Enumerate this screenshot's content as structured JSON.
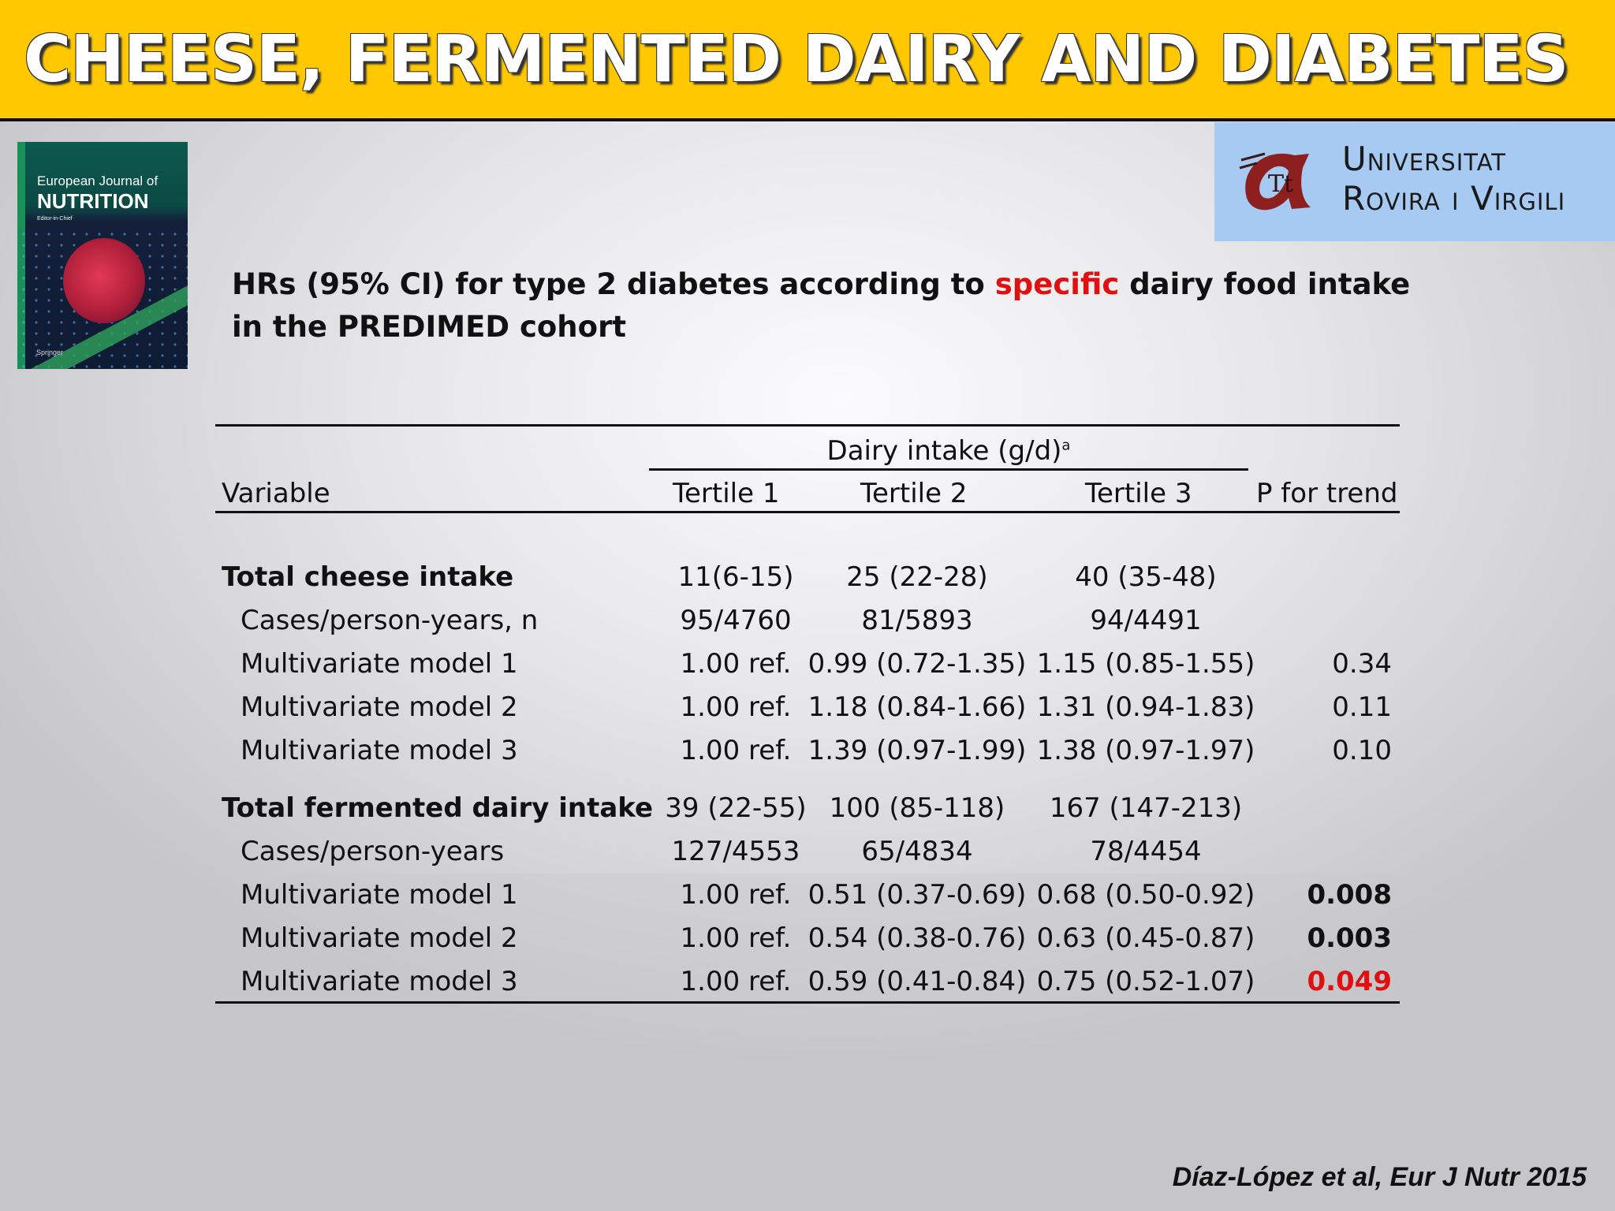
{
  "slide": {
    "title": "CHEESE, FERMENTED DAIRY AND DIABETES",
    "subtitle_pre": "HRs (95% CI) for type 2 diabetes according to ",
    "subtitle_highlight": "specific",
    "subtitle_post": " dairy food intake in the PREDIMED cohort",
    "citation": "Díaz-López et al, Eur J Nutr 2015",
    "colors": {
      "header": "#ffc800",
      "highlight": "#e01010",
      "logo_bg": "#a6caf2"
    }
  },
  "journal_cover": {
    "line1": "European Journal of",
    "line2": "NUTRITION",
    "editor": "Editor-in-Chief",
    "publisher": "Springer"
  },
  "university_logo": {
    "line1": "Universitat",
    "line2": "Rovira i Virgili"
  },
  "table": {
    "group_header": "Dairy intake (g/d)",
    "group_header_sup": "a",
    "columns": [
      "Variable",
      "Tertile 1",
      "Tertile 2",
      "Tertile 3",
      "P for trend"
    ],
    "rows": [
      {
        "label": "Total cheese intake",
        "t1": "11(6-15)",
        "t2": "25 (22-28)",
        "t3": "40 (35-48)",
        "p": ""
      },
      {
        "label": "Cases/person-years, n",
        "t1": "95/4760",
        "t2": "81/5893",
        "t3": "94/4491",
        "p": ""
      },
      {
        "label": "Multivariate model 1",
        "t1": "1.00 ref.",
        "t2": "0.99 (0.72-1.35)",
        "t3": "1.15 (0.85-1.55)",
        "p": "0.34"
      },
      {
        "label": "Multivariate model 2",
        "t1": "1.00 ref.",
        "t2": "1.18 (0.84-1.66)",
        "t3": "1.31 (0.94-1.83)",
        "p": "0.11"
      },
      {
        "label": "Multivariate model 3",
        "t1": "1.00 ref.",
        "t2": "1.39 (0.97-1.99)",
        "t3": "1.38 (0.97-1.97)",
        "p": "0.10"
      },
      {
        "label": "Total fermented dairy intake",
        "t1": "39 (22-55)",
        "t2": "100 (85-118)",
        "t3": "167 (147-213)",
        "p": ""
      },
      {
        "label": "Cases/person-years",
        "t1": "127/4553",
        "t2": "65/4834",
        "t3": "78/4454",
        "p": ""
      },
      {
        "label": "Multivariate model 1",
        "t1": "1.00 ref.",
        "t2": "0.51 (0.37-0.69)",
        "t3": "0.68 (0.50-0.92)",
        "p": "0.008"
      },
      {
        "label": "Multivariate model 2",
        "t1": "1.00 ref.",
        "t2": "0.54 (0.38-0.76)",
        "t3": "0.63 (0.45-0.87)",
        "p": "0.003"
      },
      {
        "label": "Multivariate model 3",
        "t1": "1.00 ref.",
        "t2": "0.59 (0.41-0.84)",
        "t3": "0.75 (0.52-1.07)",
        "p": "0.049"
      }
    ]
  }
}
